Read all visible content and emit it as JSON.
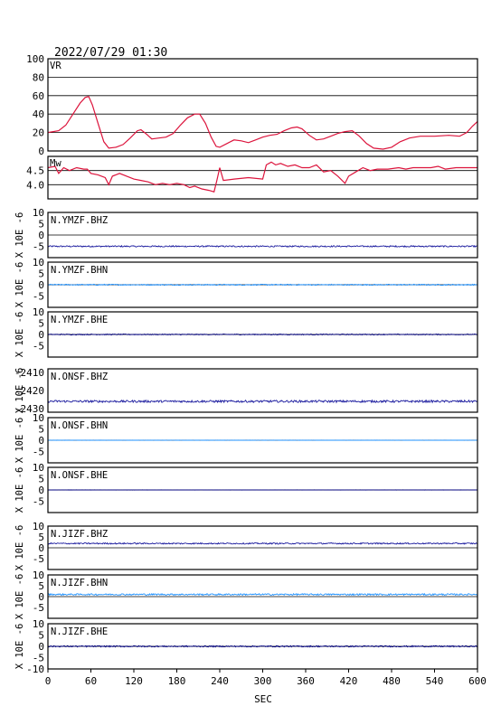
{
  "title": "2022/07/29 01:30",
  "x_axis": {
    "label": "SEC",
    "ticks": [
      0,
      60,
      120,
      180,
      240,
      300,
      360,
      420,
      480,
      540,
      600
    ],
    "range": [
      0,
      600
    ]
  },
  "colors": {
    "vr_mw": "#dc143c",
    "trace_dark": "#1a1a9e",
    "trace_light": "#1e90ff",
    "trace_navy": "#000080",
    "grid": "#000000"
  },
  "chart_data": {
    "type": "line",
    "panels": [
      {
        "name": "VR",
        "ylim": [
          0,
          100
        ],
        "ticks": [
          0,
          20,
          40,
          60,
          80,
          100
        ],
        "grid": true,
        "color": "#dc143c",
        "points": [
          [
            0,
            20
          ],
          [
            15,
            22
          ],
          [
            25,
            28
          ],
          [
            35,
            40
          ],
          [
            45,
            52
          ],
          [
            52,
            58
          ],
          [
            57,
            59
          ],
          [
            62,
            50
          ],
          [
            70,
            30
          ],
          [
            78,
            10
          ],
          [
            85,
            3
          ],
          [
            95,
            4
          ],
          [
            105,
            7
          ],
          [
            115,
            14
          ],
          [
            125,
            22
          ],
          [
            130,
            23
          ],
          [
            138,
            18
          ],
          [
            145,
            13
          ],
          [
            155,
            14
          ],
          [
            165,
            15
          ],
          [
            175,
            19
          ],
          [
            185,
            28
          ],
          [
            195,
            36
          ],
          [
            205,
            40
          ],
          [
            212,
            40
          ],
          [
            220,
            30
          ],
          [
            228,
            15
          ],
          [
            235,
            5
          ],
          [
            240,
            4
          ],
          [
            250,
            8
          ],
          [
            260,
            12
          ],
          [
            270,
            11
          ],
          [
            280,
            9
          ],
          [
            290,
            12
          ],
          [
            300,
            15
          ],
          [
            310,
            17
          ],
          [
            320,
            18
          ],
          [
            330,
            22
          ],
          [
            340,
            25
          ],
          [
            348,
            26
          ],
          [
            355,
            24
          ],
          [
            365,
            17
          ],
          [
            375,
            12
          ],
          [
            385,
            13
          ],
          [
            395,
            16
          ],
          [
            405,
            19
          ],
          [
            415,
            21
          ],
          [
            425,
            22
          ],
          [
            435,
            16
          ],
          [
            445,
            8
          ],
          [
            455,
            3
          ],
          [
            468,
            2
          ],
          [
            480,
            4
          ],
          [
            492,
            10
          ],
          [
            505,
            14
          ],
          [
            520,
            16
          ],
          [
            540,
            16
          ],
          [
            560,
            17
          ],
          [
            575,
            16
          ],
          [
            585,
            20
          ],
          [
            593,
            27
          ],
          [
            600,
            32
          ]
        ]
      },
      {
        "name": "Mw",
        "ylim": [
          3.5,
          5.0
        ],
        "ticks": [
          4.0,
          4.5
        ],
        "grid": true,
        "color": "#dc143c",
        "points": [
          [
            0,
            4.6
          ],
          [
            10,
            4.65
          ],
          [
            15,
            4.4
          ],
          [
            22,
            4.6
          ],
          [
            30,
            4.5
          ],
          [
            40,
            4.6
          ],
          [
            50,
            4.55
          ],
          [
            55,
            4.55
          ],
          [
            60,
            4.4
          ],
          [
            70,
            4.35
          ],
          [
            80,
            4.25
          ],
          [
            85,
            4.0
          ],
          [
            90,
            4.3
          ],
          [
            100,
            4.4
          ],
          [
            110,
            4.3
          ],
          [
            120,
            4.2
          ],
          [
            130,
            4.15
          ],
          [
            140,
            4.1
          ],
          [
            150,
            4.0
          ],
          [
            160,
            4.05
          ],
          [
            170,
            4.0
          ],
          [
            180,
            4.05
          ],
          [
            190,
            4.0
          ],
          [
            198,
            3.9
          ],
          [
            205,
            3.95
          ],
          [
            215,
            3.85
          ],
          [
            225,
            3.8
          ],
          [
            232,
            3.75
          ],
          [
            236,
            4.15
          ],
          [
            240,
            4.6
          ],
          [
            245,
            4.15
          ],
          [
            260,
            4.2
          ],
          [
            280,
            4.25
          ],
          [
            300,
            4.2
          ],
          [
            305,
            4.7
          ],
          [
            312,
            4.8
          ],
          [
            318,
            4.7
          ],
          [
            325,
            4.75
          ],
          [
            335,
            4.65
          ],
          [
            345,
            4.7
          ],
          [
            355,
            4.6
          ],
          [
            365,
            4.6
          ],
          [
            375,
            4.7
          ],
          [
            385,
            4.45
          ],
          [
            395,
            4.5
          ],
          [
            405,
            4.3
          ],
          [
            415,
            4.05
          ],
          [
            420,
            4.3
          ],
          [
            430,
            4.45
          ],
          [
            440,
            4.6
          ],
          [
            450,
            4.5
          ],
          [
            460,
            4.55
          ],
          [
            475,
            4.55
          ],
          [
            490,
            4.6
          ],
          [
            500,
            4.55
          ],
          [
            510,
            4.6
          ],
          [
            520,
            4.6
          ],
          [
            535,
            4.6
          ],
          [
            545,
            4.65
          ],
          [
            555,
            4.55
          ],
          [
            570,
            4.6
          ],
          [
            585,
            4.6
          ],
          [
            600,
            4.6
          ]
        ]
      }
    ],
    "traces": [
      {
        "name": "N.YMZF.BHZ",
        "ylim": [
          -10,
          10
        ],
        "ticks": [
          -5,
          0,
          5,
          10
        ],
        "unit_label": "X 10E -6",
        "baseline": -5,
        "noise": 0.3,
        "color": "#1a1a9e"
      },
      {
        "name": "N.YMZF.BHN",
        "ylim": [
          -10,
          10
        ],
        "ticks": [
          -5,
          0,
          5,
          10
        ],
        "unit_label": "X 10E -6",
        "baseline": 0,
        "noise": 0.25,
        "color": "#1e90ff"
      },
      {
        "name": "N.YMZF.BHE",
        "ylim": [
          -10,
          10
        ],
        "ticks": [
          -5,
          0,
          5,
          10
        ],
        "unit_label": "X 10E -6",
        "baseline": 0,
        "noise": 0.2,
        "color": "#000080"
      },
      {
        "name": "N.ONSF.BHZ",
        "ylim": [
          -2432,
          -2408
        ],
        "ticks": [
          -2430,
          -2420,
          -2410
        ],
        "unit_label": "X 10E -6",
        "baseline": -2426,
        "noise": 0.6,
        "color": "#1a1a9e"
      },
      {
        "name": "N.ONSF.BHN",
        "ylim": [
          -10,
          10
        ],
        "ticks": [
          -5,
          0,
          5,
          10
        ],
        "unit_label": "X 10E -6",
        "baseline": 0,
        "noise": 0.05,
        "color": "#1e90ff"
      },
      {
        "name": "N.ONSF.BHE",
        "ylim": [
          -10,
          10
        ],
        "ticks": [
          -5,
          0,
          5,
          10
        ],
        "unit_label": "X 10E -6",
        "baseline": 0,
        "noise": 0.05,
        "color": "#000080"
      },
      {
        "name": "N.JIZF.BHZ",
        "ylim": [
          -10,
          10
        ],
        "ticks": [
          -5,
          0,
          5,
          10
        ],
        "unit_label": "X 10E -6",
        "baseline": 2,
        "noise": 0.3,
        "color": "#1a1a9e"
      },
      {
        "name": "N.JIZF.BHN",
        "ylim": [
          -10,
          10
        ],
        "ticks": [
          -5,
          0,
          5,
          10
        ],
        "unit_label": "X 10E -6",
        "baseline": 1,
        "noise": 0.35,
        "color": "#1e90ff"
      },
      {
        "name": "N.JIZF.BHE",
        "ylim": [
          -10,
          10
        ],
        "ticks": [
          -5,
          0,
          5,
          10,
          -10
        ],
        "unit_label": "X 10E -6",
        "baseline": 0,
        "noise": 0.3,
        "color": "#000080"
      }
    ]
  }
}
